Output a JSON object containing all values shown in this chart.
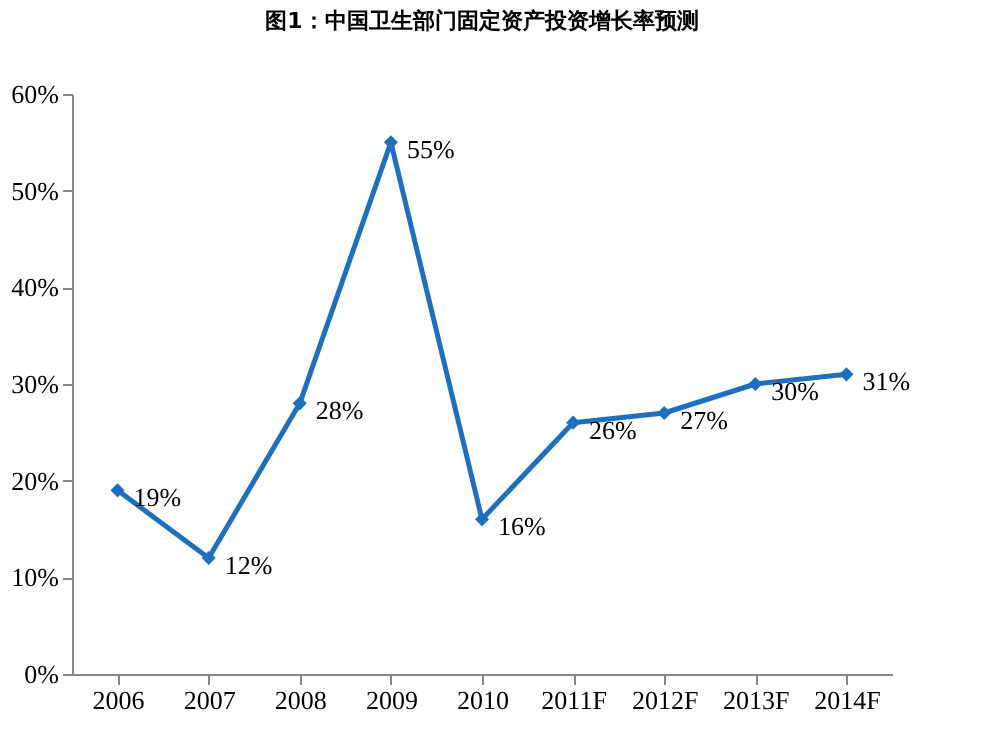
{
  "chart_data": {
    "type": "line",
    "title": "图1：中国卫生部门固定资产投资增长率预测",
    "categories": [
      "2006",
      "2007",
      "2008",
      "2009",
      "2010",
      "2011F",
      "2012F",
      "2013F",
      "2014F"
    ],
    "series": [
      {
        "color": "#1f6fbf",
        "values": [
          19,
          12,
          28,
          55,
          16,
          26,
          27,
          30,
          31
        ],
        "value_labels": [
          "19%",
          "12%",
          "28%",
          "55%",
          "16%",
          "26%",
          "27%",
          "30%",
          "31%"
        ]
      }
    ],
    "ylim": [
      0,
      60
    ],
    "yticks": [
      {
        "value": 0,
        "label": "0%"
      },
      {
        "value": 10,
        "label": "10%"
      },
      {
        "value": 20,
        "label": "20%"
      },
      {
        "value": 30,
        "label": "30%"
      },
      {
        "value": 40,
        "label": "40%"
      },
      {
        "value": 50,
        "label": "50%"
      },
      {
        "value": 60,
        "label": "60%"
      }
    ],
    "marker": "diamond",
    "grid": false
  }
}
